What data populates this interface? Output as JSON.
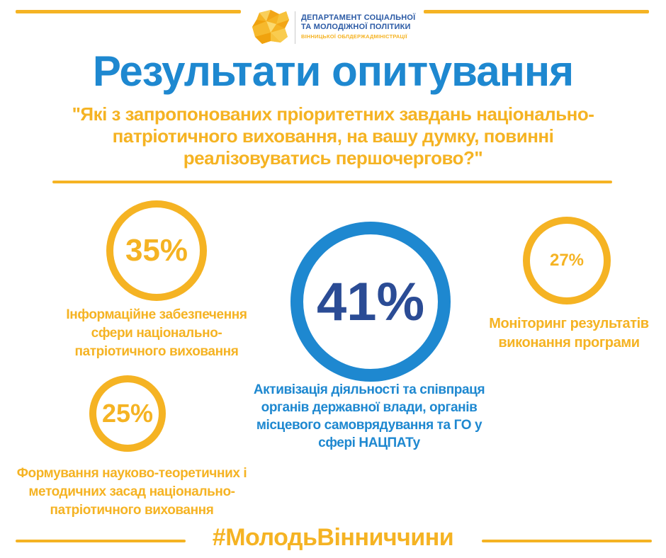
{
  "colors": {
    "accent_yellow": "#f5b323",
    "accent_blue": "#1e88d0",
    "dark_blue": "#2b4c95"
  },
  "logo": {
    "icon": "yellow-region-map-logo-icon",
    "line1": "ДЕПАРТАМЕНТ СОЦІАЛЬНОЇ",
    "line2": "ТА МОЛОДІЖНОЇ ПОЛІТИКИ",
    "line3": "ВІННИЦЬКОЇ ОБЛДЕРЖАДМІНІСТРАЦІЇ"
  },
  "title": "Результати опитування",
  "question": "\"Які з запропонованих пріоритетних завдань національно-патріотичного виховання, на вашу думку, повинні реалізовуватись першочергово?\"",
  "results": {
    "informational": {
      "percent_label": "35%",
      "value": 35,
      "caption": "Інформаційне забезпечення сфери національно-патріотичного виховання"
    },
    "scientific": {
      "percent_label": "25%",
      "value": 25,
      "caption": "Формування науково-теоретичних і методичних засад національно-патріотичного виховання"
    },
    "activation": {
      "percent_label": "41%",
      "value": 41,
      "caption": "Активізація діяльності та співпраця органів державної влади, органів місцевого самоврядування та ГО у сфері НАЦПАТу"
    },
    "monitoring": {
      "percent_label": "27%",
      "value": 27,
      "caption": "Моніторинг результатів виконання програми"
    }
  },
  "hashtag": "#МолодьВінниччини"
}
